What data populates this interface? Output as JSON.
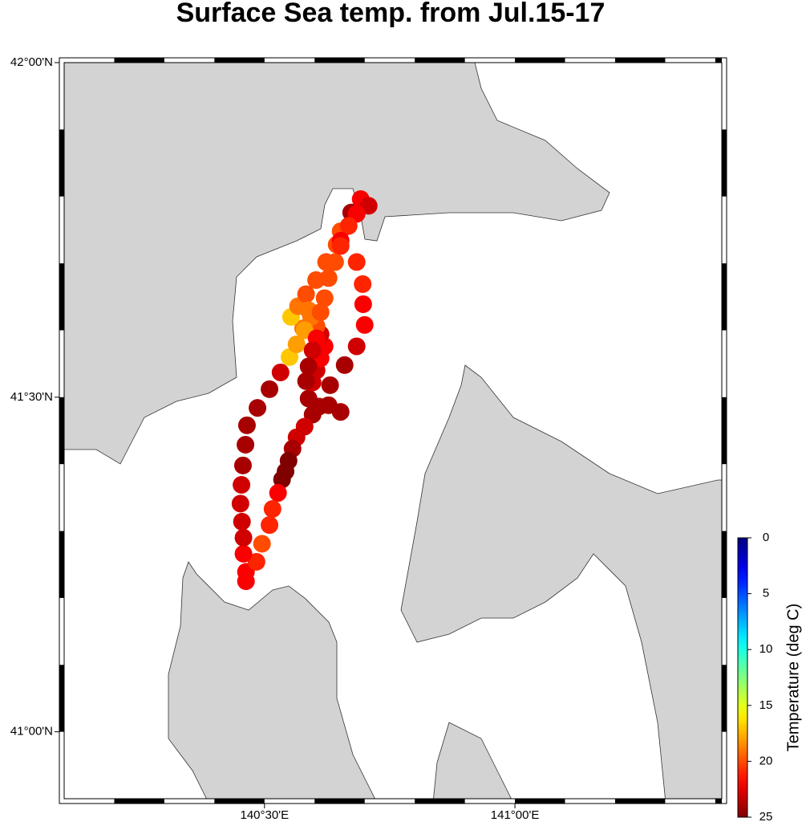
{
  "chart_data": {
    "type": "scatter",
    "title": "Surface Sea temp. from Jul.15-17",
    "xlim": [
      140.1,
      141.413
    ],
    "ylim": [
      40.9,
      42.0
    ],
    "xticks": [
      {
        "value": 140.5,
        "label": "140°30'E"
      },
      {
        "value": 141.0,
        "label": "141°00'E"
      }
    ],
    "yticks": [
      {
        "value": 41.0,
        "label": "41°00'N"
      },
      {
        "value": 41.5,
        "label": "41°30'N"
      },
      {
        "value": 42.0,
        "label": "42°00'N"
      }
    ],
    "colorbar": {
      "label": "Temperature (deg C)",
      "lim": [
        0,
        25
      ],
      "ticks": [
        0,
        5,
        10,
        15,
        20,
        25
      ],
      "colormap": "jet"
    },
    "lon": [
      140.463,
      140.463,
      140.484,
      140.458,
      140.458,
      140.455,
      140.452,
      140.454,
      140.457,
      140.462,
      140.465,
      140.486,
      140.51,
      140.532,
      140.55,
      140.564,
      140.577,
      140.553,
      140.567,
      140.583,
      140.603,
      140.623,
      140.644,
      140.652,
      140.673,
      140.692,
      140.708,
      140.684,
      140.668,
      140.652,
      140.684,
      140.696,
      140.697,
      140.7,
      140.684,
      140.66,
      140.631,
      140.652,
      140.628,
      140.609,
      140.596,
      140.58,
      140.564,
      140.556,
      140.548,
      140.542,
      140.535,
      140.527,
      140.516,
      140.51,
      140.495,
      140.588,
      140.596,
      140.604,
      140.612,
      140.62,
      140.612,
      140.604,
      140.593,
      140.58,
      140.588,
      140.62,
      140.612,
      140.628,
      140.641,
      140.652,
      140.604,
      140.596,
      140.588,
      140.583
    ],
    "lat": [
      41.225,
      41.239,
      41.254,
      41.266,
      41.29,
      41.314,
      41.341,
      41.369,
      41.398,
      41.429,
      41.458,
      41.484,
      41.512,
      41.537,
      41.56,
      41.579,
      41.603,
      41.62,
      41.636,
      41.654,
      41.675,
      41.702,
      41.728,
      41.748,
      41.776,
      41.796,
      41.786,
      41.774,
      41.756,
      41.734,
      41.702,
      41.669,
      41.639,
      41.608,
      41.576,
      41.548,
      41.518,
      41.478,
      41.488,
      41.486,
      41.474,
      41.456,
      41.44,
      41.423,
      41.405,
      41.389,
      41.377,
      41.357,
      41.333,
      41.309,
      41.281,
      41.498,
      41.522,
      41.54,
      41.558,
      41.576,
      41.594,
      41.606,
      41.62,
      41.6,
      41.63,
      41.648,
      41.627,
      41.678,
      41.702,
      41.726,
      41.588,
      41.57,
      41.546,
      41.524
    ],
    "temperature": [
      22,
      22,
      21,
      22,
      23,
      23,
      23,
      23,
      24,
      24,
      24,
      24,
      24,
      23,
      17,
      18,
      19,
      17,
      19,
      20,
      20,
      20,
      20,
      20,
      24,
      22,
      23,
      22,
      21,
      22,
      21,
      21,
      22,
      22,
      23,
      24,
      24,
      24,
      24,
      24,
      24,
      23,
      23,
      24,
      25,
      25,
      25,
      22,
      21,
      21,
      20,
      24,
      23,
      23,
      22,
      22,
      23,
      20,
      19,
      18,
      19,
      20,
      20,
      20,
      20,
      21,
      22,
      23,
      24,
      24
    ]
  }
}
